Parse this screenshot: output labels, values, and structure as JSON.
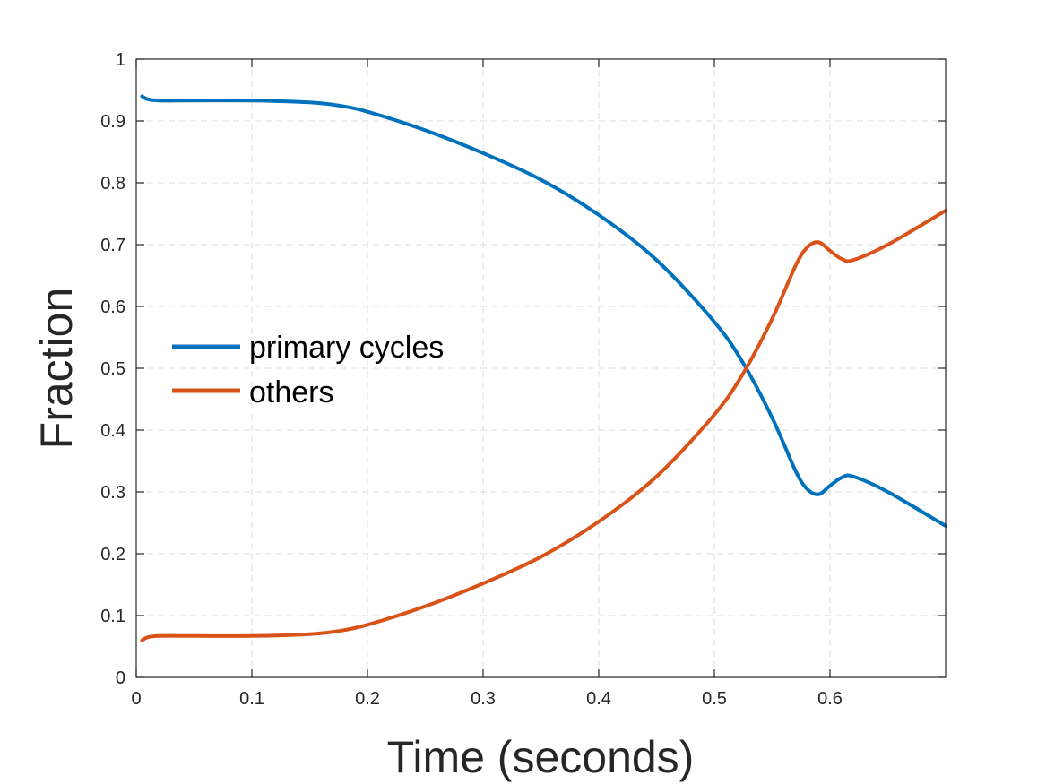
{
  "chart_data": {
    "type": "line",
    "title": "",
    "xlabel": "Time (seconds)",
    "ylabel": "Fraction",
    "xlim": [
      0,
      0.7
    ],
    "ylim": [
      0,
      1
    ],
    "x_ticks": [
      "0",
      "0.1",
      "0.2",
      "0.3",
      "0.4",
      "0.5",
      "0.6"
    ],
    "x_tick_values": [
      0,
      0.1,
      0.2,
      0.3,
      0.4,
      0.5,
      0.6
    ],
    "y_ticks": [
      "0",
      "0.1",
      "0.2",
      "0.3",
      "0.4",
      "0.5",
      "0.6",
      "0.7",
      "0.8",
      "0.9",
      "1"
    ],
    "y_tick_values": [
      0,
      0.1,
      0.2,
      0.3,
      0.4,
      0.5,
      0.6,
      0.7,
      0.8,
      0.9,
      1.0
    ],
    "grid": true,
    "legend_position": "center-left",
    "series": [
      {
        "name": "primary cycles",
        "color": "#0072BD",
        "x": [
          0.005,
          0.01,
          0.02,
          0.05,
          0.1,
          0.15,
          0.175,
          0.2,
          0.25,
          0.3,
          0.35,
          0.4,
          0.45,
          0.5,
          0.525,
          0.55,
          0.57,
          0.58,
          0.59,
          0.6,
          0.61,
          0.62,
          0.65,
          0.7
        ],
        "values": [
          0.94,
          0.935,
          0.933,
          0.933,
          0.933,
          0.93,
          0.925,
          0.915,
          0.885,
          0.848,
          0.805,
          0.748,
          0.675,
          0.575,
          0.508,
          0.42,
          0.335,
          0.305,
          0.296,
          0.31,
          0.323,
          0.325,
          0.3,
          0.245
        ]
      },
      {
        "name": "others",
        "color": "#D95319",
        "x": [
          0.005,
          0.01,
          0.02,
          0.05,
          0.1,
          0.15,
          0.175,
          0.2,
          0.25,
          0.3,
          0.35,
          0.4,
          0.45,
          0.5,
          0.525,
          0.55,
          0.57,
          0.58,
          0.59,
          0.6,
          0.61,
          0.62,
          0.65,
          0.7
        ],
        "values": [
          0.06,
          0.065,
          0.067,
          0.067,
          0.067,
          0.07,
          0.075,
          0.085,
          0.115,
          0.152,
          0.195,
          0.252,
          0.325,
          0.425,
          0.492,
          0.58,
          0.665,
          0.695,
          0.704,
          0.69,
          0.677,
          0.675,
          0.7,
          0.755
        ]
      }
    ]
  }
}
